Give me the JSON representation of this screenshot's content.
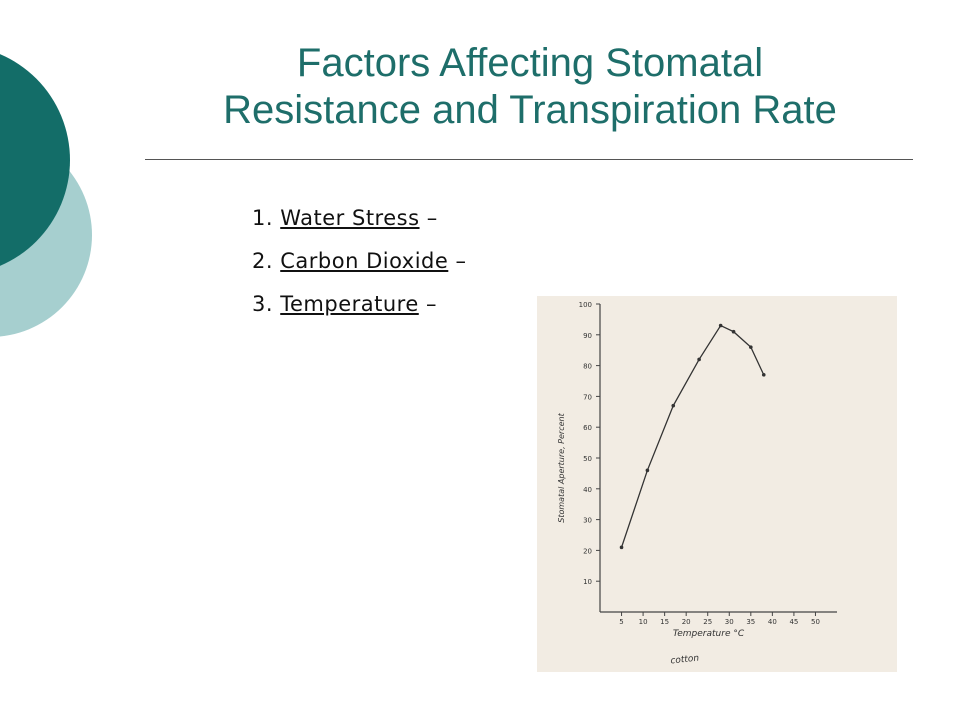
{
  "title": [
    "Factors Affecting Stomatal",
    "Resistance and Transpiration Rate"
  ],
  "items": [
    {
      "number": "1.",
      "term": "Water Stress",
      "dash": "–"
    },
    {
      "number": "2.",
      "term": "Carbon Dioxide",
      "dash": "–"
    },
    {
      "number": "3.",
      "term": "Temperature",
      "dash": "–"
    }
  ],
  "chart_data": {
    "type": "line",
    "x_label": "Temperature °C",
    "y_label": "Stomatal Aperture, Percent",
    "annotation": "cotton",
    "x": [
      5,
      11,
      17,
      23,
      28,
      31,
      35,
      38
    ],
    "series": [
      {
        "color": "#333333",
        "values": [
          21,
          46,
          67,
          82,
          93,
          91,
          86,
          77
        ]
      }
    ],
    "xlim": [
      0,
      55
    ],
    "ylim": [
      0,
      100
    ],
    "xticks": [
      5,
      10,
      15,
      20,
      25,
      30,
      35,
      40,
      45,
      50
    ],
    "yticks": [
      10,
      20,
      30,
      40,
      50,
      60,
      70,
      80,
      90,
      100
    ]
  }
}
